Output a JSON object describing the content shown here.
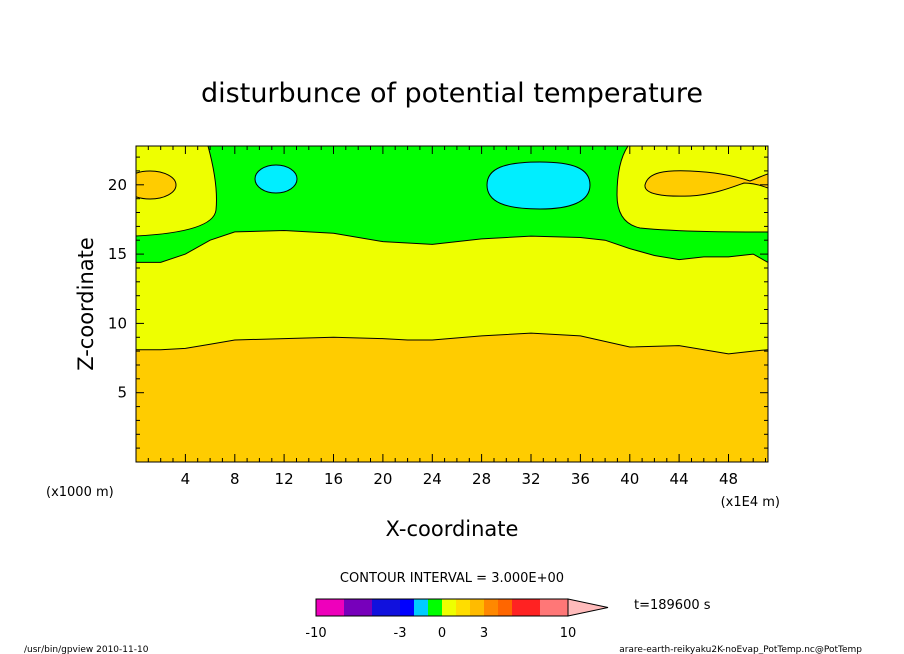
{
  "chart_data": {
    "type": "contour",
    "title": "disturbunce of potential temperature",
    "xlabel": "X-coordinate",
    "ylabel": "Z-coordinate",
    "x_unit_left": "(x1000 m)",
    "x_unit_right": "(x1E4 m)",
    "xlim": [
      0,
      51.2
    ],
    "ylim": [
      0,
      22.8
    ],
    "x_ticks": [
      "4",
      "8",
      "12",
      "16",
      "20",
      "24",
      "28",
      "32",
      "36",
      "40",
      "44",
      "48"
    ],
    "x_tick_values": [
      4,
      8,
      12,
      16,
      20,
      24,
      28,
      32,
      36,
      40,
      44,
      48
    ],
    "y_ticks": [
      "5",
      "10",
      "15",
      "20"
    ],
    "y_tick_values": [
      5,
      10,
      15,
      20
    ],
    "contour_interval_label": "CONTOUR INTERVAL = 3.000E+00",
    "time_label": "t=189600 s",
    "contour_levels": [
      -3,
      0,
      3
    ],
    "boundaries": {
      "lower_0_to_3": [
        [
          0,
          8.1
        ],
        [
          2,
          8.1
        ],
        [
          4,
          8.2
        ],
        [
          6,
          8.5
        ],
        [
          8,
          8.8
        ],
        [
          12,
          8.9
        ],
        [
          16,
          9.0
        ],
        [
          20,
          8.9
        ],
        [
          22,
          8.8
        ],
        [
          24,
          8.8
        ],
        [
          28,
          9.1
        ],
        [
          32,
          9.3
        ],
        [
          36,
          9.1
        ],
        [
          40,
          8.3
        ],
        [
          44,
          8.4
        ],
        [
          46,
          8.1
        ],
        [
          48,
          7.8
        ],
        [
          50,
          8.0
        ],
        [
          51.2,
          8.1
        ]
      ],
      "upper_0_to_-3": [
        [
          0,
          14.4
        ],
        [
          2,
          14.4
        ],
        [
          4,
          15.0
        ],
        [
          6,
          16.0
        ],
        [
          8,
          16.6
        ],
        [
          12,
          16.7
        ],
        [
          16,
          16.5
        ],
        [
          20,
          15.9
        ],
        [
          24,
          15.7
        ],
        [
          28,
          16.1
        ],
        [
          32,
          16.3
        ],
        [
          36,
          16.2
        ],
        [
          38,
          16.0
        ],
        [
          40,
          15.4
        ],
        [
          42,
          14.9
        ],
        [
          44,
          14.6
        ],
        [
          46,
          14.8
        ],
        [
          48,
          14.8
        ],
        [
          50,
          15.0
        ],
        [
          51.2,
          14.4
        ]
      ]
    },
    "colorbar": {
      "labels": [
        "-10",
        "-3",
        "0",
        "3",
        "10"
      ],
      "label_values": [
        -10,
        -3,
        0,
        3,
        10
      ],
      "colors": [
        "#ee00bb",
        "#ee00bb",
        "#7700bb",
        "#7700bb",
        "#1111dd",
        "#1111dd",
        "#0000ff",
        "#00ccff",
        "#00ff00",
        "#eeff00",
        "#ffdd00",
        "#ffbb00",
        "#ff8800",
        "#ff6600",
        "#ff2222",
        "#ff2222",
        "#ff7777",
        "#ff7777"
      ]
    }
  },
  "footer": {
    "left": "/usr/bin/gpview 2010-11-10",
    "right": "arare-earth-reikyaku2K-noEvap_PotTemp.nc@PotTemp"
  }
}
